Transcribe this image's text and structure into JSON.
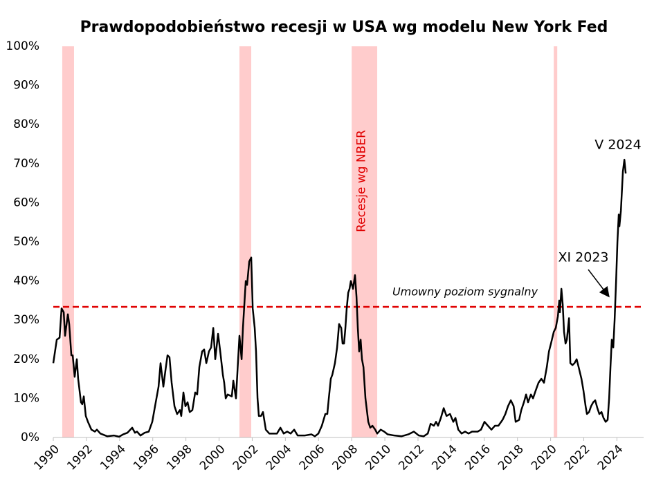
{
  "chart_data": {
    "type": "line",
    "title": "Prawdopodobieństwo recesji w USA wg modelu New York Fed",
    "xlim": [
      1990,
      2025.61
    ],
    "xticks": [
      1990,
      1992,
      1994,
      1996,
      1998,
      2000,
      2002,
      2004,
      2006,
      2008,
      2010,
      2012,
      2014,
      2016,
      2018,
      2020,
      2022,
      2024
    ],
    "ylim": [
      0,
      100
    ],
    "yticks": [
      {
        "value": 0,
        "label": "0%"
      },
      {
        "value": 10,
        "label": "10%"
      },
      {
        "value": 20,
        "label": "20%"
      },
      {
        "value": 30,
        "label": "30%"
      },
      {
        "value": 40,
        "label": "40%"
      },
      {
        "value": 50,
        "label": "50%"
      },
      {
        "value": 60,
        "label": "60%"
      },
      {
        "value": 70,
        "label": "70%"
      },
      {
        "value": 80,
        "label": "80%"
      },
      {
        "value": 90,
        "label": "90%"
      },
      {
        "value": 100,
        "label": "100%"
      }
    ],
    "grid": false,
    "recessions": {
      "label": "Recesje wg NBER",
      "color": "#ffcccc",
      "spans": [
        [
          1990.54,
          1991.25
        ],
        [
          2001.23,
          2001.94
        ],
        [
          2008.0,
          2009.54
        ],
        [
          2020.19,
          2020.4
        ]
      ]
    },
    "threshold": {
      "value": 33.4,
      "label": "Umowny poziom sygnalny",
      "color": "#e00000"
    },
    "annotations": [
      "V 2024",
      "XI 2023"
    ],
    "x": [
      1990.0,
      1990.21,
      1990.38,
      1990.5,
      1990.63,
      1990.71,
      1990.88,
      1990.96,
      1991.09,
      1991.17,
      1991.29,
      1991.42,
      1991.5,
      1991.67,
      1991.75,
      1991.84,
      1991.96,
      1992.09,
      1992.3,
      1992.51,
      1992.63,
      1992.84,
      1993.26,
      1993.67,
      1993.97,
      1994.22,
      1994.47,
      1994.76,
      1994.93,
      1995.05,
      1995.26,
      1995.51,
      1995.76,
      1995.97,
      1996.18,
      1996.35,
      1996.47,
      1996.64,
      1996.76,
      1996.89,
      1997.01,
      1997.14,
      1997.31,
      1997.47,
      1997.64,
      1997.72,
      1997.85,
      1997.97,
      1998.1,
      1998.23,
      1998.39,
      1998.56,
      1998.68,
      1998.81,
      1998.98,
      1999.1,
      1999.23,
      1999.39,
      1999.52,
      1999.65,
      1999.77,
      1999.94,
      2000.07,
      2000.23,
      2000.31,
      2000.4,
      2000.52,
      2000.77,
      2000.86,
      2001.02,
      2001.15,
      2001.23,
      2001.36,
      2001.44,
      2001.61,
      2001.69,
      2001.82,
      2001.94,
      2002.03,
      2002.15,
      2002.23,
      2002.32,
      2002.4,
      2002.53,
      2002.65,
      2002.82,
      2003.03,
      2003.28,
      2003.49,
      2003.7,
      2003.9,
      2004.11,
      2004.32,
      2004.53,
      2004.74,
      2005.16,
      2005.57,
      2005.78,
      2005.99,
      2006.2,
      2006.41,
      2006.53,
      2006.62,
      2006.74,
      2006.83,
      2006.99,
      2007.12,
      2007.24,
      2007.37,
      2007.45,
      2007.54,
      2007.62,
      2007.7,
      2007.79,
      2007.87,
      2007.95,
      2008.08,
      2008.2,
      2008.29,
      2008.37,
      2008.45,
      2008.54,
      2008.62,
      2008.71,
      2008.83,
      2009.0,
      2009.12,
      2009.25,
      2009.42,
      2009.54,
      2009.75,
      2009.96,
      2010.17,
      2010.58,
      2011.0,
      2011.42,
      2011.75,
      2012.05,
      2012.34,
      2012.59,
      2012.76,
      2012.96,
      2013.09,
      2013.21,
      2013.38,
      2013.55,
      2013.72,
      2013.93,
      2014.13,
      2014.26,
      2014.43,
      2014.63,
      2014.84,
      2015.05,
      2015.26,
      2015.6,
      2015.8,
      2016.01,
      2016.22,
      2016.43,
      2016.64,
      2016.85,
      2017.1,
      2017.27,
      2017.43,
      2017.6,
      2017.77,
      2017.89,
      2018.1,
      2018.23,
      2018.39,
      2018.52,
      2018.64,
      2018.81,
      2018.94,
      2019.1,
      2019.27,
      2019.44,
      2019.6,
      2019.77,
      2019.9,
      2020.02,
      2020.19,
      2020.31,
      2020.44,
      2020.52,
      2020.56,
      2020.65,
      2020.73,
      2020.81,
      2020.9,
      2020.98,
      2021.11,
      2021.19,
      2021.32,
      2021.44,
      2021.57,
      2021.69,
      2021.86,
      2021.98,
      2022.11,
      2022.19,
      2022.32,
      2022.44,
      2022.57,
      2022.69,
      2022.82,
      2022.94,
      2023.07,
      2023.19,
      2023.32,
      2023.44,
      2023.53,
      2023.61,
      2023.69,
      2023.78,
      2023.86,
      2023.95,
      2024.03,
      2024.11,
      2024.15,
      2024.24,
      2024.36,
      2024.45,
      2024.53
    ],
    "series": [
      {
        "name": "Prawdopodobieństwo recesji",
        "color": "#000000",
        "values": [
          19,
          25,
          25.5,
          33,
          32,
          26,
          31.5,
          29,
          21,
          21,
          15.5,
          20,
          15,
          9,
          8.5,
          10.5,
          5.5,
          4,
          2,
          1.5,
          2,
          1,
          0.3,
          0.5,
          0.2,
          0.8,
          1.2,
          2.5,
          1.2,
          1.5,
          0.5,
          1.2,
          1.5,
          4,
          9,
          13,
          19,
          13,
          17,
          21,
          20.5,
          14,
          8,
          6,
          7,
          5.5,
          11.5,
          8,
          9,
          6.5,
          7,
          11.5,
          11,
          18,
          22,
          22.5,
          19,
          22,
          23,
          28,
          20,
          26.5,
          22,
          16,
          14,
          10,
          11,
          10.5,
          14.5,
          10,
          20,
          26,
          20,
          28,
          40,
          39,
          45,
          46,
          33,
          28,
          22,
          10,
          5.5,
          5.5,
          6.5,
          2,
          1,
          1,
          1,
          2.5,
          1,
          1.5,
          1,
          2,
          0.5,
          0.5,
          0.8,
          0.3,
          1,
          3,
          6,
          6,
          10,
          15,
          16,
          19,
          23,
          29,
          28,
          24,
          24,
          28,
          33,
          37,
          38,
          40,
          38,
          41.5,
          36,
          28,
          22,
          25,
          20,
          18,
          10,
          4,
          2.5,
          3,
          2,
          1,
          2,
          1.5,
          0.8,
          0.5,
          0.3,
          0.8,
          1.5,
          0.5,
          0.3,
          1,
          3.5,
          3,
          4,
          3,
          5,
          7.5,
          5.5,
          6,
          4,
          5,
          2,
          1,
          1.5,
          1,
          1.5,
          1.5,
          2,
          4,
          3,
          2,
          3,
          3,
          4.5,
          6,
          8,
          9.5,
          8,
          4,
          4.5,
          7,
          9,
          11,
          9,
          11,
          10,
          12,
          14,
          15,
          14,
          18,
          22,
          24,
          27,
          28,
          31,
          35,
          32,
          38,
          34,
          27,
          24,
          25,
          30.5,
          19,
          18.5,
          19,
          20,
          18,
          15,
          12,
          8,
          6,
          6.5,
          8,
          9,
          9.5,
          7.5,
          6,
          6.5,
          5,
          4,
          4.5,
          10,
          18,
          25,
          23,
          30,
          40,
          50,
          57,
          54,
          58,
          68,
          71,
          67.5
        ]
      }
    ]
  }
}
